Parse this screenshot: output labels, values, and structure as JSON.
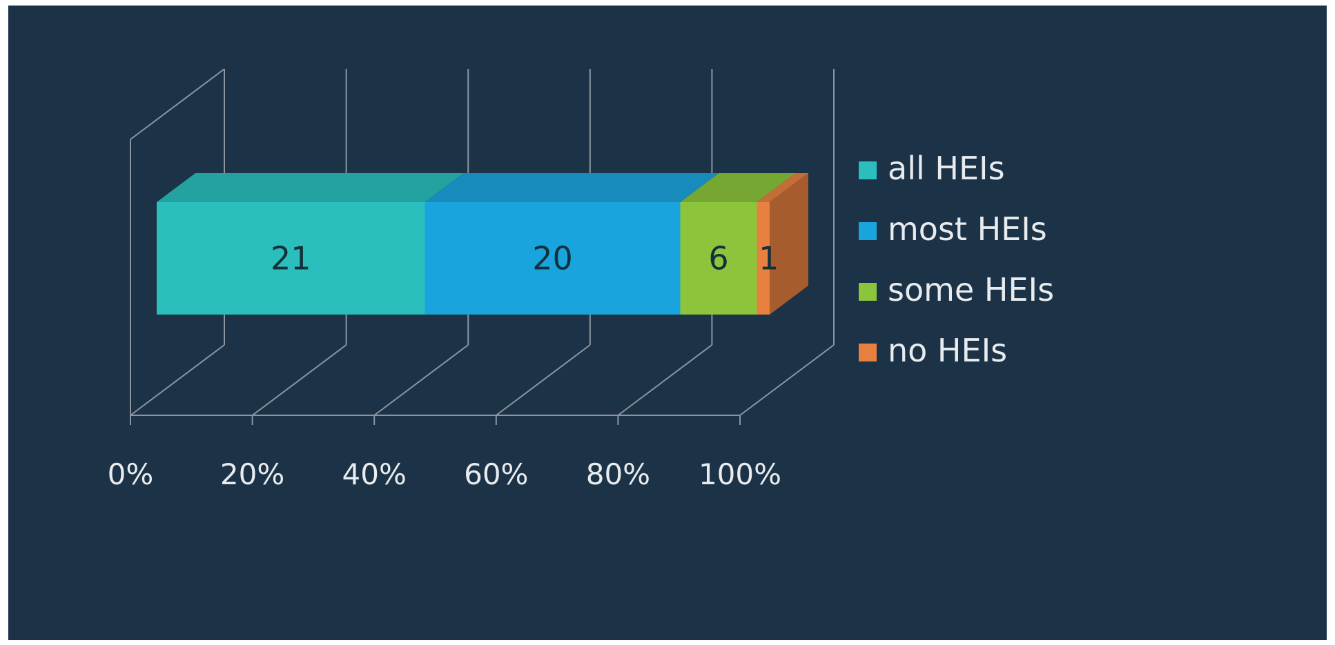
{
  "chart_data": {
    "type": "bar",
    "orientation": "horizontal",
    "stacked": "percent",
    "three_d": true,
    "categories": [
      ""
    ],
    "series": [
      {
        "name": "all HEIs",
        "values": [
          21
        ],
        "color": "#2abfbc"
      },
      {
        "name": "most HEIs",
        "values": [
          20
        ],
        "color": "#1aa4dd"
      },
      {
        "name": "some HEIs",
        "values": [
          6
        ],
        "color": "#8cc43c"
      },
      {
        "name": "no HEIs",
        "values": [
          1
        ],
        "color": "#e8803f"
      }
    ],
    "x_ticks": [
      "0%",
      "20%",
      "40%",
      "60%",
      "80%",
      "100%"
    ],
    "xlim": [
      0,
      100
    ],
    "grid": true,
    "legend_position": "right",
    "background": "#1c3246",
    "gridline_color": "#8b96a0"
  }
}
